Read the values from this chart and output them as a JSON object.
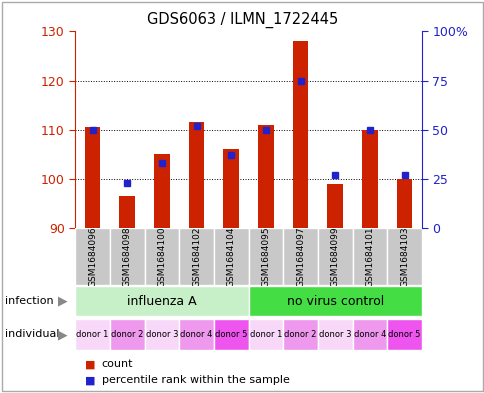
{
  "title": "GDS6063 / ILMN_1722445",
  "samples": [
    "GSM1684096",
    "GSM1684098",
    "GSM1684100",
    "GSM1684102",
    "GSM1684104",
    "GSM1684095",
    "GSM1684097",
    "GSM1684099",
    "GSM1684101",
    "GSM1684103"
  ],
  "count_values": [
    110.5,
    96.5,
    105.0,
    111.5,
    106.0,
    111.0,
    128.0,
    99.0,
    110.0,
    100.0
  ],
  "percentile_values": [
    50,
    23,
    33,
    52,
    37,
    50,
    75,
    27,
    50,
    27
  ],
  "y_min": 90,
  "y_max": 130,
  "y_ticks": [
    90,
    100,
    110,
    120,
    130
  ],
  "right_y_ticks": [
    0,
    25,
    50,
    75,
    100
  ],
  "right_y_labels": [
    "0",
    "25",
    "50",
    "75",
    "100%"
  ],
  "infection_groups": [
    {
      "label": "influenza A",
      "start": 0,
      "end": 5,
      "color": "#c8f0c8"
    },
    {
      "label": "no virus control",
      "start": 5,
      "end": 10,
      "color": "#44dd44"
    }
  ],
  "individual_labels": [
    "donor 1",
    "donor 2",
    "donor 3",
    "donor 4",
    "donor 5",
    "donor 1",
    "donor 2",
    "donor 3",
    "donor 4",
    "donor 5"
  ],
  "individual_colors": [
    "#f8d8f8",
    "#ee99ee",
    "#f8d8f8",
    "#ee99ee",
    "#ee55ee",
    "#f8d8f8",
    "#ee99ee",
    "#f8d8f8",
    "#ee99ee",
    "#ee55ee"
  ],
  "bar_color": "#cc2200",
  "blue_color": "#2222cc",
  "grid_color": "#000000",
  "sample_bg_color": "#c8c8c8",
  "left_axis_color": "#cc2200",
  "right_axis_color": "#2222cc",
  "fig_width": 4.85,
  "fig_height": 3.93,
  "fig_dpi": 100
}
